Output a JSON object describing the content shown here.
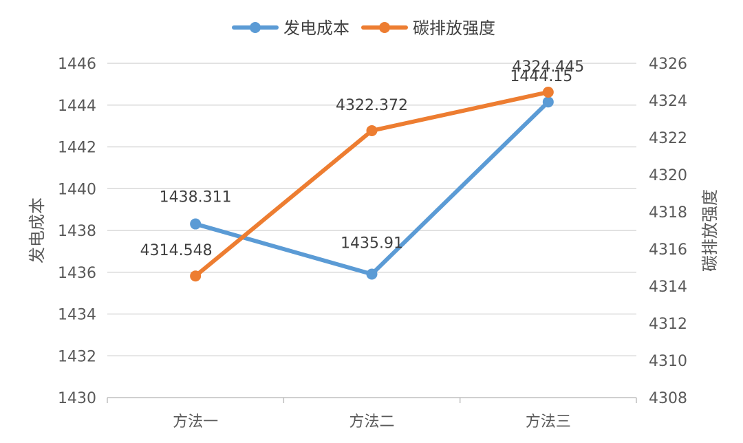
{
  "chart_data": {
    "type": "line",
    "categories": [
      "方法一",
      "方法二",
      "方法三"
    ],
    "series": [
      {
        "name": "发电成本",
        "axis": "left",
        "color": "#5b9bd5",
        "values": [
          1438.311,
          1435.91,
          1444.15
        ],
        "labels": [
          "1438.311",
          "1435.91",
          "1444.15"
        ]
      },
      {
        "name": "碳排放强度",
        "axis": "right",
        "color": "#ed7d31",
        "values": [
          4314.548,
          4322.372,
          4324.445
        ],
        "labels": [
          "4314.548",
          "4322.372",
          "4324.445"
        ]
      }
    ],
    "y_left": {
      "label": "发电成本",
      "range": [
        1430,
        1446
      ],
      "ticks": [
        "1430",
        "1432",
        "1434",
        "1436",
        "1438",
        "1440",
        "1442",
        "1444",
        "1446"
      ]
    },
    "y_right": {
      "label": "碳排放强度",
      "range": [
        4308,
        4326
      ],
      "ticks": [
        "4308",
        "4310",
        "4312",
        "4314",
        "4316",
        "4318",
        "4320",
        "4322",
        "4324",
        "4326"
      ]
    },
    "grid": true,
    "legend_position": "top"
  }
}
